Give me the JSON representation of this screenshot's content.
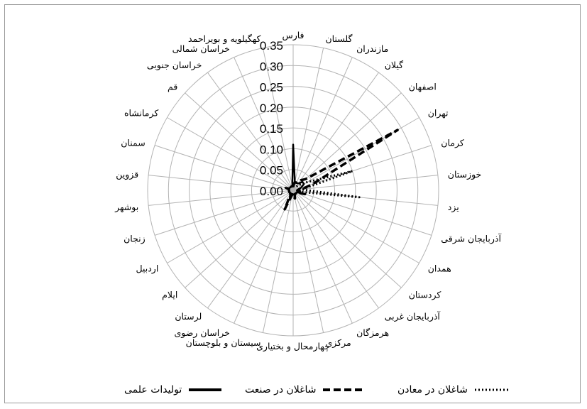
{
  "chart_data": {
    "type": "radar",
    "title": "",
    "axis_labels": [
      "فارس",
      "گلستان",
      "مازندران",
      "گیلان",
      "اصفهان",
      "تهران",
      "کرمان",
      "خوزستان",
      "یزد",
      "آذربایجان شرقی",
      "همدان",
      "کردستان",
      "آذربایجان غربی",
      "هرمزگان",
      "مرکزی",
      "چهارمحال و بختیاری",
      "سیستان و بلوچستان",
      "خراسان رضوی",
      "لرستان",
      "ایلام",
      "اردبیل",
      "زنجان",
      "بوشهر",
      "قزوین",
      "سمنان",
      "کرمانشاه",
      "قم",
      "خراسان جنوبی",
      "خراسان شمالی",
      "کهگیلویه و بویراحمد"
    ],
    "radial_ticks": [
      "0.00",
      "0.05",
      "0.10",
      "0.15",
      "0.20",
      "0.25",
      "0.30",
      "0.35"
    ],
    "rmin": 0,
    "rmax": 0.35,
    "grid": true,
    "legend_position": "bottom",
    "series": [
      {
        "name": "تولیدات علمی",
        "style": "solid",
        "values": [
          0.11,
          0.02,
          0.02,
          0.02,
          0.03,
          0.03,
          0.02,
          0.01,
          0.01,
          0.02,
          0.01,
          0.01,
          0.01,
          0.01,
          0.01,
          0.01,
          0.01,
          0.02,
          0.01,
          0.01,
          0.01,
          0.01,
          0.01,
          0.01,
          0.02,
          0.01,
          0.01,
          0.01,
          0.01,
          0.01
        ]
      },
      {
        "name": "شاغلان در صنعت",
        "style": "dashed",
        "values": [
          0.01,
          0.02,
          0.02,
          0.03,
          0.04,
          0.29,
          0.05,
          0.02,
          0.01,
          0.03,
          0.01,
          0.01,
          0.01,
          0.01,
          0.02,
          0.01,
          0.01,
          0.05,
          0.01,
          0.01,
          0.01,
          0.01,
          0.01,
          0.01,
          0.01,
          0.01,
          0.01,
          0.01,
          0.01,
          0.01
        ]
      },
      {
        "name": "شاغلان در معادن",
        "style": "dotted",
        "values": [
          0.01,
          0.01,
          0.01,
          0.01,
          0.02,
          0.04,
          0.15,
          0.02,
          0.16,
          0.01,
          0.01,
          0.01,
          0.01,
          0.01,
          0.01,
          0.01,
          0.01,
          0.02,
          0.01,
          0.01,
          0.01,
          0.01,
          0.01,
          0.01,
          0.01,
          0.01,
          0.01,
          0.01,
          0.01,
          0.01
        ]
      }
    ]
  }
}
